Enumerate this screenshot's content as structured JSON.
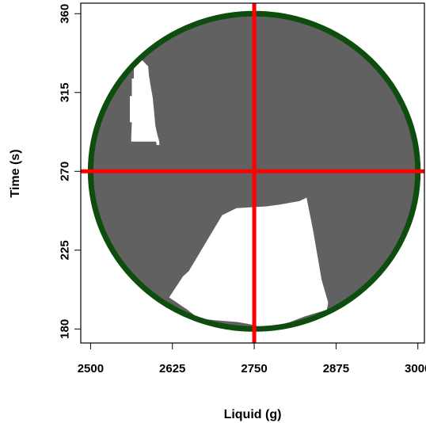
{
  "chart_data": {
    "type": "scatter",
    "title": "",
    "xlabel": "Liquid (g)",
    "ylabel": "Time (s)",
    "xlim": [
      2485,
      3010
    ],
    "ylim": [
      172,
      366
    ],
    "x_ticks": [
      2500,
      2625,
      2750,
      2875,
      3000
    ],
    "x_tick_labels": [
      "2500",
      "2625",
      "2750",
      "2875",
      "3000"
    ],
    "y_ticks": [
      180,
      225,
      270,
      315,
      360
    ],
    "y_tick_labels": [
      "180",
      "225",
      "270",
      "315",
      "360"
    ],
    "grid": false,
    "legend": "none",
    "region": {
      "shape": "circle",
      "center": {
        "x": 2750,
        "y": 270
      },
      "x_radius": 250,
      "y_radius": 90,
      "fill_color": "#616161",
      "outline_color": "#0d4d0d"
    },
    "crosshair": {
      "x": 2750,
      "y": 270,
      "color": "#ff0000"
    },
    "excluded_regions": [
      {
        "fill_color": "#ffffff",
        "points": [
          [
            2562,
            289
          ],
          [
            2563,
            298
          ],
          [
            2560,
            298
          ],
          [
            2560,
            313
          ],
          [
            2563,
            313
          ],
          [
            2563,
            323
          ],
          [
            2566,
            323
          ],
          [
            2566,
            336
          ],
          [
            2568,
            339
          ],
          [
            2570,
            338
          ],
          [
            2574,
            336
          ],
          [
            2580,
            333
          ],
          [
            2585,
            331
          ],
          [
            2588,
            330
          ],
          [
            2589,
            325
          ],
          [
            2592,
            318
          ],
          [
            2595,
            312
          ],
          [
            2597,
            304
          ],
          [
            2599,
            296
          ],
          [
            2602,
            291
          ],
          [
            2605,
            287
          ],
          [
            2605,
            285
          ],
          [
            2601,
            285
          ],
          [
            2600,
            287
          ],
          [
            2562,
            287
          ]
        ]
      },
      {
        "fill_color": "#ffffff",
        "points": [
          [
            2620,
            198
          ],
          [
            2641,
            210
          ],
          [
            2650,
            213
          ],
          [
            2701,
            245
          ],
          [
            2723,
            249
          ],
          [
            2769,
            250
          ],
          [
            2789,
            251
          ],
          [
            2819,
            253
          ],
          [
            2830,
            255
          ],
          [
            2840,
            236
          ],
          [
            2853,
            208
          ],
          [
            2863,
            195
          ],
          [
            2861,
            191
          ],
          [
            2826,
            187
          ],
          [
            2805,
            184
          ],
          [
            2779,
            181
          ],
          [
            2766,
            180
          ],
          [
            2752,
            182
          ],
          [
            2740,
            183
          ],
          [
            2724,
            184
          ],
          [
            2690,
            185
          ],
          [
            2665,
            186
          ],
          [
            2648,
            191
          ],
          [
            2628,
            196
          ]
        ]
      }
    ]
  }
}
